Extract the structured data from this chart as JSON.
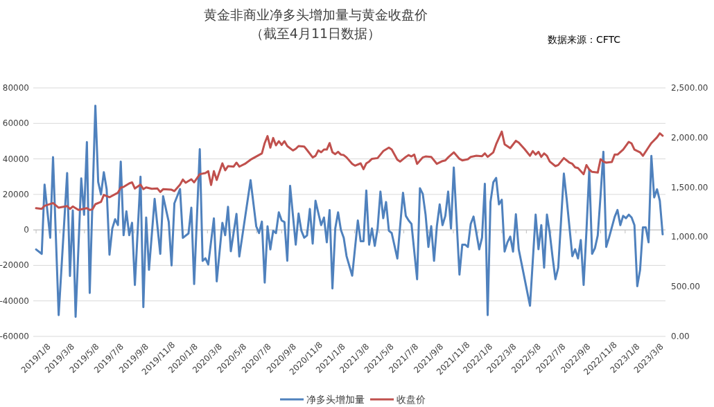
{
  "chart_data": {
    "type": "line",
    "title": "黄金非商业净多头增加量与黄金收盘价",
    "subtitle": "（截至4月11日数据）",
    "annotations": [
      "数据来源：CFTC"
    ],
    "xlim": [
      "2019-01-01",
      "2023-04-18"
    ],
    "xticks": [
      {
        "value": "2019-01-08",
        "label": "2019/1/8"
      },
      {
        "value": "2019-03-08",
        "label": "2019/3/8"
      },
      {
        "value": "2019-05-08",
        "label": "2019/5/8"
      },
      {
        "value": "2019-07-08",
        "label": "2019/7/8"
      },
      {
        "value": "2019-09-08",
        "label": "2019/9/8"
      },
      {
        "value": "2019-11-08",
        "label": "2019/11/8"
      },
      {
        "value": "2020-01-08",
        "label": "2020/1/8"
      },
      {
        "value": "2020-03-08",
        "label": "2020/3/8"
      },
      {
        "value": "2020-05-08",
        "label": "2020/5/8"
      },
      {
        "value": "2020-07-08",
        "label": "2020/7/8"
      },
      {
        "value": "2020-09-08",
        "label": "2020/9/8"
      },
      {
        "value": "2020-11-08",
        "label": "2020/11/8"
      },
      {
        "value": "2021-01-08",
        "label": "2021/1/8"
      },
      {
        "value": "2021-03-08",
        "label": "2021/3/8"
      },
      {
        "value": "2021-05-08",
        "label": "2021/5/8"
      },
      {
        "value": "2021-07-08",
        "label": "2021/7/8"
      },
      {
        "value": "2021-09-08",
        "label": "2021/9/8"
      },
      {
        "value": "2021-11-08",
        "label": "2021/11/8"
      },
      {
        "value": "2022-01-08",
        "label": "2022/1/8"
      },
      {
        "value": "2022-03-08",
        "label": "2022/3/8"
      },
      {
        "value": "2022-05-08",
        "label": "2022/5/8"
      },
      {
        "value": "2022-07-08",
        "label": "2022/7/8"
      },
      {
        "value": "2022-09-08",
        "label": "2022/9/8"
      },
      {
        "value": "2022-11-08",
        "label": "2022/11/8"
      },
      {
        "value": "2023-01-08",
        "label": "2023/1/8"
      },
      {
        "value": "2023-03-08",
        "label": "2023/3/8"
      }
    ],
    "ylim": [
      -60000,
      80000
    ],
    "yticks": [
      -60000,
      -40000,
      -20000,
      0,
      20000,
      40000,
      60000,
      80000
    ],
    "y2lim": [
      0,
      2500
    ],
    "y2ticks": [
      {
        "value": 0,
        "label": "0.00"
      },
      {
        "value": 500,
        "label": "500.00"
      },
      {
        "value": 1000,
        "label": "1,000.00"
      },
      {
        "value": 1500,
        "label": "1,500.00"
      },
      {
        "value": 2000,
        "label": "2,000.00"
      },
      {
        "value": 2500,
        "label": "2,500.00"
      }
    ],
    "grid": "y",
    "legend": "bottom",
    "series": [
      {
        "name": "净多头增加量",
        "color": "#4f81bd",
        "x": [
          "2019-01-08",
          "2019-01-22",
          "2019-01-29",
          "2019-02-12",
          "2019-02-19",
          "2019-03-05",
          "2019-03-26",
          "2019-04-02",
          "2019-04-09",
          "2019-04-16",
          "2019-04-30",
          "2019-05-07",
          "2019-05-14",
          "2019-05-21",
          "2019-06-04",
          "2019-06-11",
          "2019-06-18",
          "2019-06-25",
          "2019-07-02",
          "2019-07-09",
          "2019-07-16",
          "2019-07-23",
          "2019-07-30",
          "2019-08-06",
          "2019-08-13",
          "2019-08-20",
          "2019-08-27",
          "2019-09-03",
          "2019-09-10",
          "2019-09-24",
          "2019-10-01",
          "2019-10-08",
          "2019-10-15",
          "2019-10-29",
          "2019-11-12",
          "2019-11-19",
          "2019-12-03",
          "2019-12-10",
          "2019-12-17",
          "2019-12-31",
          "2020-01-07",
          "2020-01-21",
          "2020-01-28",
          "2020-02-04",
          "2020-02-18",
          "2020-02-25",
          "2020-03-03",
          "2020-03-10",
          "2020-03-24",
          "2020-03-31",
          "2020-04-14",
          "2020-04-21",
          "2020-04-28",
          "2020-05-05",
          "2020-05-19",
          "2020-05-26",
          "2020-06-23",
          "2020-07-07",
          "2020-07-14",
          "2020-07-21",
          "2020-07-28",
          "2020-08-04",
          "2020-08-11",
          "2020-08-18",
          "2020-08-25",
          "2020-09-01",
          "2020-09-08",
          "2020-09-15",
          "2020-09-22",
          "2020-09-29",
          "2020-10-13",
          "2020-10-20",
          "2020-10-27",
          "2020-11-03",
          "2020-11-10",
          "2020-11-17",
          "2020-11-24",
          "2020-12-01",
          "2020-12-15",
          "2020-12-22",
          "2020-12-29",
          "2021-01-05",
          "2021-01-12",
          "2021-01-19",
          "2021-01-26",
          "2021-02-02",
          "2021-02-09",
          "2021-02-16",
          "2021-03-02",
          "2021-03-16",
          "2021-03-23",
          "2021-03-30",
          "2021-04-06",
          "2021-04-13",
          "2021-04-20",
          "2021-04-27",
          "2021-05-04",
          "2021-05-11",
          "2021-05-18",
          "2021-05-25",
          "2021-06-01",
          "2021-06-08",
          "2021-06-22",
          "2021-07-06",
          "2021-07-13",
          "2021-07-20",
          "2021-07-27",
          "2021-08-10",
          "2021-08-17",
          "2021-08-24",
          "2021-08-31",
          "2021-09-07",
          "2021-09-14",
          "2021-09-21",
          "2021-09-28",
          "2021-10-05",
          "2021-10-12",
          "2021-10-19",
          "2021-10-26",
          "2021-11-02",
          "2021-11-09",
          "2021-11-23",
          "2021-11-30",
          "2021-12-07",
          "2021-12-14",
          "2021-12-21",
          "2021-12-28",
          "2022-01-11",
          "2022-01-18",
          "2022-01-25",
          "2022-02-01",
          "2022-02-08",
          "2022-02-15",
          "2022-02-22",
          "2022-03-01",
          "2022-03-08",
          "2022-03-15",
          "2022-03-22",
          "2022-03-29",
          "2022-04-05",
          "2022-04-12",
          "2022-04-19",
          "2022-05-17",
          "2022-05-31",
          "2022-06-07",
          "2022-06-14",
          "2022-06-21",
          "2022-06-28",
          "2022-07-05",
          "2022-07-12",
          "2022-07-19",
          "2022-07-26",
          "2022-08-09",
          "2022-08-16",
          "2022-08-30",
          "2022-09-06",
          "2022-09-13",
          "2022-09-20",
          "2022-09-27",
          "2022-10-04",
          "2022-10-11",
          "2022-10-18",
          "2022-10-25",
          "2022-11-01",
          "2022-11-08",
          "2022-11-15",
          "2022-11-22",
          "2022-11-29",
          "2022-12-13",
          "2022-12-20",
          "2022-12-27",
          "2023-01-03",
          "2023-01-10",
          "2023-01-17",
          "2023-01-24",
          "2023-01-31",
          "2023-02-07",
          "2023-02-14",
          "2023-02-21",
          "2023-02-28",
          "2023-03-07",
          "2023-03-14",
          "2023-03-21",
          "2023-03-28",
          "2023-04-04",
          "2023-04-11"
        ],
        "values": [
          -11000,
          -13500,
          25500,
          -4400,
          41000,
          -48000,
          32000,
          -26000,
          11000,
          -49000,
          29000,
          8500,
          49500,
          -35500,
          70000,
          27000,
          20000,
          32500,
          23000,
          -14000,
          800,
          6000,
          2700,
          38500,
          -3000,
          10500,
          -3000,
          4000,
          -31000,
          30000,
          -43500,
          7000,
          -22500,
          17500,
          -13500,
          19000,
          4500,
          -20000,
          15000,
          23000,
          -4500,
          -2000,
          12500,
          -30500,
          45500,
          -17500,
          -16000,
          -19500,
          6500,
          -29000,
          4000,
          -3000,
          13000,
          -12000,
          9000,
          -15000,
          28000,
          2000,
          -1800,
          4700,
          -29700,
          2000,
          -11000,
          -500,
          -1800,
          9900,
          5300,
          4400,
          -17400,
          24800,
          -8300,
          9200,
          -500,
          -4400,
          -3100,
          11800,
          -7700,
          16400,
          2700,
          7000,
          -7000,
          11200,
          -33000,
          800,
          9900,
          0,
          -4400,
          -14800,
          -25800,
          5300,
          -6400,
          -6400,
          22200,
          -8300,
          800,
          -9000,
          800,
          21600,
          6600,
          15700,
          -500,
          -1800,
          -16100,
          20900,
          7900,
          5300,
          3400,
          -27800,
          23500,
          20300,
          8600,
          -9600,
          2100,
          -17400,
          2100,
          14400,
          2700,
          7900,
          21600,
          800,
          35200,
          -25200,
          -8300,
          -8300,
          -9600,
          3400,
          7500,
          -11000,
          -4400,
          26000,
          -48000,
          15700,
          26800,
          29300,
          14400,
          17000,
          -12200,
          -7000,
          -3800,
          -12200,
          8800,
          -10900,
          -42700,
          8600,
          -10900,
          2700,
          -21300,
          8600,
          -1800,
          -15400,
          -27800,
          -21300,
          31700,
          17300,
          -14800,
          -10900,
          -16100,
          -5700,
          -31000,
          -500,
          34000,
          -13500,
          -10300,
          -3100,
          19400,
          44000,
          -9600,
          -4400,
          7300,
          11200,
          2700,
          7900,
          6600,
          8600,
          7000,
          2700,
          -31700,
          -22600,
          1400,
          1400,
          -7000,
          41700,
          18300,
          22900,
          16400,
          -2500
        ]
      },
      {
        "name": "收盘价",
        "color": "#c0504d",
        "axis": "y2",
        "x": [
          "2019-01-08",
          "2019-01-22",
          "2019-01-29",
          "2019-02-19",
          "2019-03-05",
          "2019-03-26",
          "2019-04-02",
          "2019-04-09",
          "2019-04-23",
          "2019-05-14",
          "2019-05-21",
          "2019-05-28",
          "2019-06-04",
          "2019-06-18",
          "2019-06-25",
          "2019-07-09",
          "2019-07-30",
          "2019-08-06",
          "2019-08-13",
          "2019-08-27",
          "2019-09-03",
          "2019-09-10",
          "2019-09-24",
          "2019-10-01",
          "2019-10-08",
          "2019-10-22",
          "2019-11-05",
          "2019-11-12",
          "2019-11-19",
          "2019-12-10",
          "2019-12-17",
          "2019-12-31",
          "2020-01-07",
          "2020-01-14",
          "2020-01-28",
          "2020-02-04",
          "2020-02-18",
          "2020-03-03",
          "2020-03-10",
          "2020-03-17",
          "2020-03-24",
          "2020-03-31",
          "2020-04-14",
          "2020-04-21",
          "2020-04-28",
          "2020-05-12",
          "2020-05-19",
          "2020-05-26",
          "2020-06-09",
          "2020-06-23",
          "2020-07-07",
          "2020-07-21",
          "2020-07-28",
          "2020-08-04",
          "2020-08-11",
          "2020-08-18",
          "2020-08-25",
          "2020-09-01",
          "2020-09-08",
          "2020-09-15",
          "2020-09-22",
          "2020-10-06",
          "2020-10-13",
          "2020-10-20",
          "2020-11-03",
          "2020-11-10",
          "2020-11-24",
          "2020-12-01",
          "2020-12-08",
          "2020-12-15",
          "2020-12-22",
          "2020-12-29",
          "2021-01-05",
          "2021-01-12",
          "2021-01-19",
          "2021-01-26",
          "2021-02-02",
          "2021-02-09",
          "2021-02-16",
          "2021-03-02",
          "2021-03-09",
          "2021-03-23",
          "2021-03-30",
          "2021-04-06",
          "2021-04-13",
          "2021-04-20",
          "2021-05-04",
          "2021-05-18",
          "2021-06-01",
          "2021-06-08",
          "2021-06-22",
          "2021-06-29",
          "2021-07-13",
          "2021-07-20",
          "2021-07-27",
          "2021-08-03",
          "2021-08-10",
          "2021-08-24",
          "2021-08-31",
          "2021-09-14",
          "2021-09-28",
          "2021-10-12",
          "2021-10-19",
          "2021-10-26",
          "2021-11-09",
          "2021-11-23",
          "2021-11-30",
          "2021-12-14",
          "2021-12-21",
          "2022-01-04",
          "2022-01-18",
          "2022-01-25",
          "2022-02-01",
          "2022-02-15",
          "2022-02-22",
          "2022-03-08",
          "2022-03-15",
          "2022-03-29",
          "2022-04-12",
          "2022-04-19",
          "2022-05-03",
          "2022-05-17",
          "2022-05-24",
          "2022-05-31",
          "2022-06-07",
          "2022-06-14",
          "2022-06-21",
          "2022-06-28",
          "2022-07-05",
          "2022-07-19",
          "2022-07-26",
          "2022-08-09",
          "2022-08-23",
          "2022-08-30",
          "2022-09-06",
          "2022-09-13",
          "2022-09-27",
          "2022-10-04",
          "2022-10-11",
          "2022-10-18",
          "2022-11-01",
          "2022-11-08",
          "2022-11-15",
          "2022-11-22",
          "2022-12-06",
          "2022-12-13",
          "2022-12-20",
          "2023-01-03",
          "2023-01-17",
          "2023-01-24",
          "2023-01-31",
          "2023-02-14",
          "2023-02-21",
          "2023-03-07",
          "2023-03-14",
          "2023-03-28",
          "2023-04-04",
          "2023-04-11"
        ],
        "values": [
          1290,
          1283,
          1314,
          1341,
          1295,
          1311,
          1283,
          1307,
          1272,
          1290,
          1272,
          1279,
          1330,
          1353,
          1423,
          1400,
          1446,
          1497,
          1504,
          1539,
          1550,
          1488,
          1527,
          1481,
          1499,
          1485,
          1488,
          1453,
          1481,
          1476,
          1462,
          1527,
          1578,
          1546,
          1581,
          1550,
          1632,
          1643,
          1662,
          1523,
          1662,
          1574,
          1741,
          1671,
          1713,
          1708,
          1748,
          1708,
          1736,
          1778,
          1810,
          1841,
          1945,
          2015,
          1899,
          1996,
          1922,
          1964,
          1926,
          1964,
          1915,
          1871,
          1887,
          1915,
          1910,
          1875,
          1801,
          1817,
          1871,
          1852,
          1880,
          1880,
          1945,
          1852,
          1834,
          1857,
          1829,
          1824,
          1801,
          1736,
          1718,
          1741,
          1683,
          1741,
          1759,
          1787,
          1794,
          1864,
          1899,
          1880,
          1778,
          1759,
          1806,
          1824,
          1810,
          1829,
          1736,
          1801,
          1810,
          1806,
          1736,
          1764,
          1771,
          1801,
          1852,
          1787,
          1771,
          1783,
          1806,
          1817,
          1813,
          1841,
          1806,
          1852,
          1933,
          2061,
          1933,
          1894,
          1968,
          1950,
          1887,
          1817,
          1864,
          1829,
          1857,
          1806,
          1841,
          1817,
          1759,
          1713,
          1724,
          1794,
          1748,
          1736,
          1701,
          1694,
          1632,
          1724,
          1678,
          1655,
          1648,
          1783,
          1759,
          1748,
          1755,
          1829,
          1829,
          1880,
          1957,
          1941,
          1880,
          1852,
          1817,
          1903,
          1945,
          2003,
          2043,
          2019
        ]
      }
    ]
  }
}
